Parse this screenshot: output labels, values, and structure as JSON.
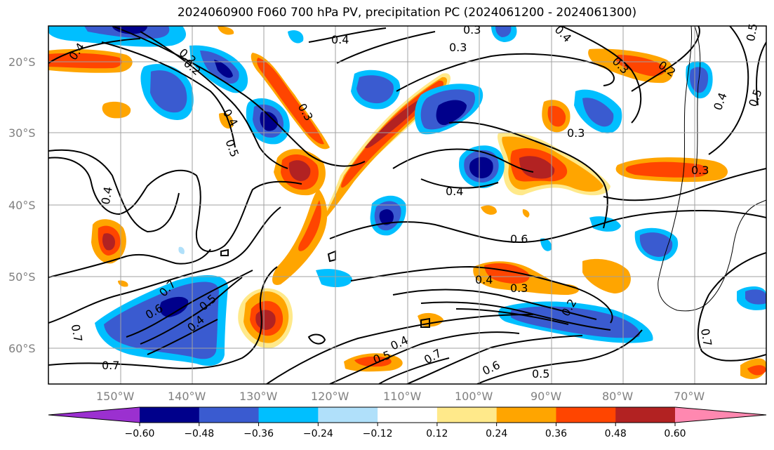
{
  "title": "2024060900 F060 700 hPa PV, precipitation PC (2024061200 - 2024061300)",
  "map": {
    "lat_labels": [
      "20°S",
      "30°S",
      "40°S",
      "50°S",
      "60°S"
    ],
    "lon_labels": [
      "150°W",
      "140°W",
      "130°W",
      "120°W",
      "110°W",
      "100°W",
      "90°W",
      "80°W",
      "70°W"
    ],
    "lat_range": [
      -65,
      -15
    ],
    "lon_range": [
      -160,
      -60
    ],
    "grid": true,
    "contour_labels": [
      "0.4",
      "0.2",
      "0.3",
      "0.4",
      "0.2",
      "0.5",
      "0.4",
      "0.3",
      "0.2",
      "0.4",
      "0.5",
      "0.3",
      "0.3",
      "0.3",
      "0.4",
      "0.4",
      "0.5",
      "0.3",
      "0.4",
      "0.6",
      "0.4",
      "0.3",
      "0.7",
      "0.6",
      "0.5",
      "0.4",
      "0.2",
      "0.7",
      "0.7",
      "0.4",
      "0.5",
      "0.7",
      "0.6",
      "0.5",
      "0.7"
    ]
  },
  "colorbar": {
    "ticks": [
      "−0.60",
      "−0.48",
      "−0.36",
      "−0.24",
      "−0.12",
      "0.12",
      "0.24",
      "0.36",
      "0.48",
      "0.60"
    ],
    "colors": [
      "#9b30d0",
      "#00008b",
      "#3a5bd0",
      "#00bfff",
      "#b0e0fa",
      "#ffffff",
      "#ffe98a",
      "#ffa500",
      "#ff4500",
      "#b22222",
      "#ff88b0"
    ],
    "extend": "both"
  }
}
